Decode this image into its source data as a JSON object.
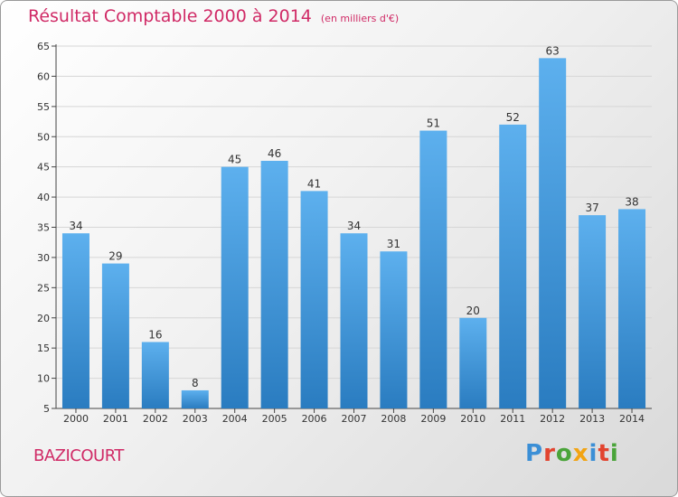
{
  "header": {
    "title": "Résultat Comptable 2000 à 2014",
    "subtitle": "(en milliers d'€)"
  },
  "footer": {
    "place": "BAZICOURT",
    "logo": {
      "text": "Proxiti",
      "colors": [
        "#3b8fd6",
        "#e2442f",
        "#4aa43a",
        "#f2a413",
        "#3b8fd6",
        "#e2442f",
        "#4aa43a"
      ]
    }
  },
  "colors": {
    "bar_top": "#5db0ee",
    "bar_bottom": "#2a7cc0",
    "title": "#d02a66"
  },
  "chart_data": {
    "type": "bar",
    "title": "Résultat Comptable 2000 à 2014",
    "ylabel": "en milliers d'€",
    "xlabel": "",
    "categories": [
      "2000",
      "2001",
      "2002",
      "2003",
      "2004",
      "2005",
      "2006",
      "2007",
      "2008",
      "2009",
      "2010",
      "2011",
      "2012",
      "2013",
      "2014"
    ],
    "values": [
      34,
      29,
      16,
      8,
      45,
      46,
      41,
      34,
      31,
      51,
      20,
      52,
      63,
      37,
      38
    ],
    "ylim": [
      5,
      65
    ],
    "yticks": [
      5,
      10,
      15,
      20,
      25,
      30,
      35,
      40,
      45,
      50,
      55,
      60,
      65
    ],
    "grid": true
  }
}
